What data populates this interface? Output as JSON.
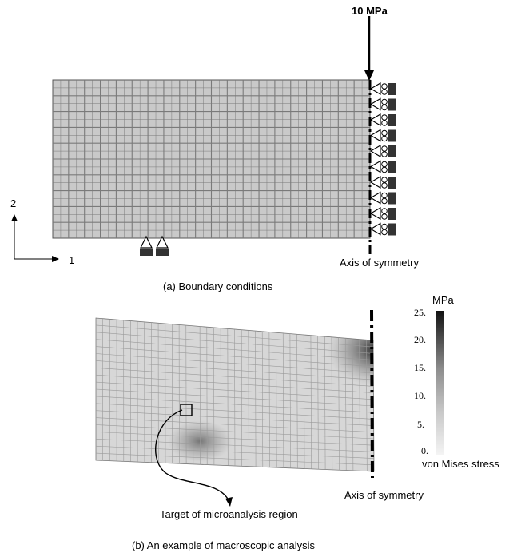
{
  "top": {
    "load_label": "10 MPa",
    "axis2_label": "2",
    "axis1_label": "1",
    "symmetry_label": "Axis of symmetry",
    "caption": "(a) Boundary conditions"
  },
  "bottom": {
    "colorbar_unit": "MPa",
    "colorbar_ticks": [
      "25.",
      "20.",
      "15.",
      "10.",
      "5.",
      "0."
    ],
    "colorbar_title": "von Mises stress",
    "symmetry_label": "Axis of symmetry",
    "target_label": "Target of microanalysis region",
    "caption": "(b) An example of macroscopic analysis"
  }
}
